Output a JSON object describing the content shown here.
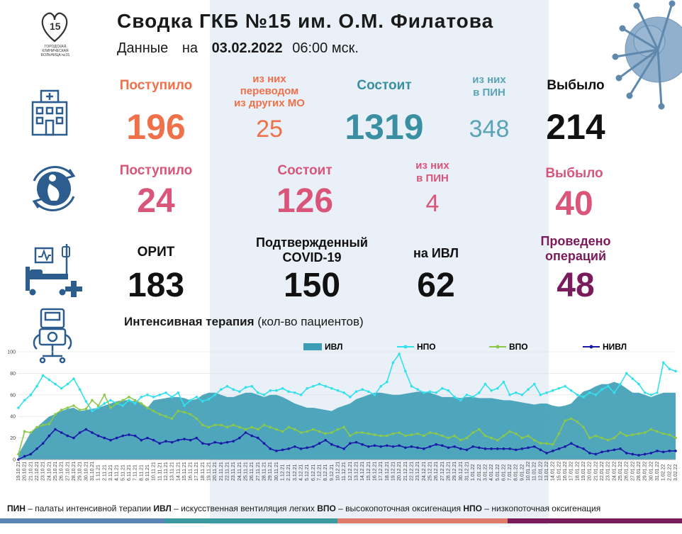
{
  "header": {
    "title": "Сводка ГКБ №15 им. О.М. Филатова",
    "data_label": "Данные",
    "on_label": "на",
    "date": "03.02.2022",
    "time": "06:00 мск."
  },
  "logo": {
    "text": "ГОРОДСКАЯ КЛИНИЧЕСКАЯ БОЛЬНИЦА №15"
  },
  "row1": {
    "admitted_label": "Поступило",
    "admitted_value": "196",
    "transfer_label_1": "из них",
    "transfer_label_2": "переводом",
    "transfer_label_3": "из других МО",
    "transfer_value": "25",
    "current_label": "Состоит",
    "current_value": "1319",
    "icu_label_1": "из них",
    "icu_label_2": "в ПИН",
    "icu_value": "348",
    "discharged_label": "Выбыло",
    "discharged_value": "214"
  },
  "row2": {
    "admitted_label": "Поступило",
    "admitted_value": "24",
    "current_label": "Состоит",
    "current_value": "126",
    "icu_label_1": "из них",
    "icu_label_2": "в ПИН",
    "icu_value": "4",
    "discharged_label": "Выбыло",
    "discharged_value": "40"
  },
  "row3": {
    "orit_label": "ОРИТ",
    "orit_value": "183",
    "covid_label_1": "Подтвержденный",
    "covid_label_2": "COVID-19",
    "covid_value": "150",
    "ivl_label": "на ИВЛ",
    "ivl_value": "62",
    "ops_label_1": "Проведено",
    "ops_label_2": "операций",
    "ops_value": "48"
  },
  "chart_title": {
    "bold": "Интенсивная терапия",
    "normal": "(кол-во пациентов)"
  },
  "footer": {
    "pin_abbr": "ПИН",
    "pin_text": " – палаты интенсивной терапии  ",
    "ivl_abbr": "ИВЛ",
    "ivl_text": " – искусственная вентиляция  легких ",
    "vpo_abbr": "ВПО",
    "vpo_text": " – высокопоточная оксигенация ",
    "npo_abbr": "НПО",
    "npo_text": " – низкопоточная  оксигенация"
  },
  "colors": {
    "ivl": "#3d9db5",
    "npo": "#33e0ee",
    "vpo": "#8cc84b",
    "nivl": "#1a1aa8"
  },
  "chart_data": {
    "type": "line",
    "ylim": [
      0,
      100
    ],
    "yticks": [
      0,
      20,
      40,
      60,
      80,
      100
    ],
    "x": [
      "19.10.21",
      "20.10.21",
      "21.10.21",
      "22.10.21",
      "23.10.21",
      "24.10.21",
      "25.10.21",
      "26.10.21",
      "27.10.21",
      "28.10.21",
      "29.10.21",
      "30.10.21",
      "31.10.21",
      "1.11.21",
      "2.11.21",
      "3.11.21",
      "4.11.21",
      "5.11.21",
      "6.11.21",
      "7.11.21",
      "8.11.21",
      "9.11.21",
      "10.11.21",
      "11.11.21",
      "12.11.21",
      "13.11.21",
      "14.11.21",
      "15.11.21",
      "16.11.21",
      "17.11.21",
      "18.11.21",
      "19.11.21",
      "20.11.21",
      "21.11.21",
      "22.11.21",
      "23.11.21",
      "24.11.21",
      "25.11.21",
      "26.11.21",
      "27.11.21",
      "28.11.21",
      "29.11.21",
      "30.11.21",
      "1.12.21",
      "2.12.21",
      "3.12.21",
      "4.12.21",
      "5.12.21",
      "6.12.21",
      "7.12.21",
      "8.12.21",
      "9.12.21",
      "10.12.21",
      "11.12.21",
      "12.12.21",
      "13.12.21",
      "14.12.21",
      "15.12.21",
      "16.12.21",
      "17.12.21",
      "18.12.21",
      "19.12.21",
      "20.12.21",
      "21.12.21",
      "22.12.21",
      "23.12.21",
      "24.12.21",
      "25.12.21",
      "26.12.21",
      "27.12.21",
      "28.12.21",
      "29.12.21",
      "30.12.21",
      "31.12.21",
      "1.01.22",
      "2.01.22",
      "3.01.22",
      "4.01.22",
      "5.01.22",
      "6.01.22",
      "7.01.22",
      "8.01.22",
      "9.01.22",
      "10.01.22",
      "11.01.22",
      "12.01.22",
      "13.01.22",
      "14.01.22",
      "15.01.22",
      "16.01.22",
      "17.01.22",
      "18.01.22",
      "19.01.22",
      "20.01.22",
      "21.01.22",
      "22.01.22",
      "23.01.22",
      "24.01.22",
      "25.01.22",
      "26.01.22",
      "27.01.22",
      "28.01.22",
      "29.01.22",
      "30.01.22",
      "31.01.22",
      "1.02.22",
      "2.02.22",
      "3.02.22"
    ],
    "series": [
      {
        "name": "ИВЛ",
        "kind": "area",
        "values": [
          5,
          15,
          25,
          30,
          35,
          40,
          42,
          45,
          47,
          48,
          45,
          46,
          47,
          48,
          50,
          52,
          54,
          55,
          55,
          54,
          52,
          48,
          55,
          56,
          57,
          58,
          58,
          57,
          55,
          56,
          60,
          62,
          62,
          60,
          58,
          58,
          60,
          62,
          62,
          60,
          58,
          60,
          60,
          58,
          55,
          52,
          50,
          48,
          48,
          47,
          46,
          45,
          48,
          50,
          52,
          56,
          58,
          60,
          62,
          62,
          61,
          60,
          60,
          61,
          62,
          63,
          63,
          62,
          60,
          58,
          58,
          58,
          57,
          58,
          58,
          57,
          57,
          57,
          56,
          55,
          55,
          54,
          53,
          52,
          51,
          52,
          52,
          50,
          49,
          50,
          52,
          58,
          63,
          65,
          68,
          70,
          70,
          72,
          70,
          66,
          62,
          62,
          60,
          58,
          60,
          62,
          62,
          62
        ]
      },
      {
        "name": "НПО",
        "kind": "line",
        "values": [
          48,
          55,
          60,
          68,
          78,
          74,
          70,
          66,
          70,
          75,
          65,
          54,
          45,
          48,
          52,
          55,
          52,
          50,
          55,
          52,
          58,
          60,
          58,
          60,
          62,
          58,
          62,
          50,
          55,
          58,
          54,
          56,
          60,
          65,
          68,
          65,
          63,
          67,
          68,
          62,
          60,
          64,
          64,
          66,
          63,
          62,
          60,
          66,
          68,
          70,
          68,
          66,
          64,
          62,
          58,
          63,
          65,
          63,
          60,
          68,
          72,
          90,
          98,
          82,
          68,
          65,
          62,
          63,
          62,
          66,
          64,
          58,
          55,
          60,
          58,
          62,
          70,
          64,
          66,
          72,
          60,
          62,
          60,
          65,
          70,
          60,
          62,
          64,
          66,
          68,
          64,
          60,
          58,
          62,
          60,
          65,
          68,
          62,
          70,
          80,
          75,
          70,
          62,
          60,
          62,
          90,
          84,
          82
        ]
      },
      {
        "name": "ВПО",
        "kind": "line",
        "values": [
          5,
          26,
          25,
          30,
          32,
          33,
          42,
          46,
          48,
          50,
          46,
          47,
          55,
          50,
          60,
          48,
          52,
          55,
          58,
          55,
          52,
          48,
          45,
          42,
          40,
          38,
          45,
          44,
          42,
          38,
          32,
          30,
          32,
          32,
          30,
          32,
          30,
          28,
          30,
          28,
          32,
          30,
          28,
          26,
          30,
          28,
          25,
          26,
          28,
          26,
          24,
          25,
          28,
          30,
          22,
          25,
          25,
          24,
          23,
          22,
          22,
          24,
          25,
          22,
          23,
          24,
          22,
          25,
          24,
          22,
          20,
          22,
          18,
          20,
          25,
          28,
          22,
          20,
          18,
          22,
          26,
          24,
          20,
          22,
          18,
          15,
          15,
          14,
          24,
          36,
          38,
          35,
          30,
          20,
          22,
          20,
          18,
          20,
          25,
          22,
          23,
          24,
          25,
          28,
          26,
          24,
          23,
          20
        ]
      },
      {
        "name": "НИВЛ",
        "kind": "line",
        "values": [
          0,
          3,
          5,
          10,
          15,
          22,
          28,
          25,
          22,
          20,
          25,
          28,
          25,
          22,
          20,
          18,
          20,
          22,
          23,
          22,
          18,
          20,
          18,
          15,
          17,
          16,
          18,
          19,
          18,
          20,
          15,
          14,
          16,
          15,
          16,
          17,
          20,
          25,
          22,
          20,
          15,
          10,
          8,
          9,
          10,
          12,
          10,
          11,
          12,
          15,
          18,
          14,
          12,
          10,
          15,
          16,
          14,
          12,
          13,
          12,
          13,
          12,
          13,
          11,
          12,
          11,
          10,
          12,
          14,
          13,
          11,
          12,
          10,
          9,
          12,
          11,
          10,
          10,
          10,
          10,
          10,
          9,
          10,
          11,
          12,
          9,
          6,
          8,
          10,
          12,
          15,
          12,
          10,
          6,
          5,
          7,
          8,
          9,
          10,
          6,
          5,
          4,
          5,
          6,
          8,
          7,
          8,
          8
        ]
      }
    ]
  }
}
